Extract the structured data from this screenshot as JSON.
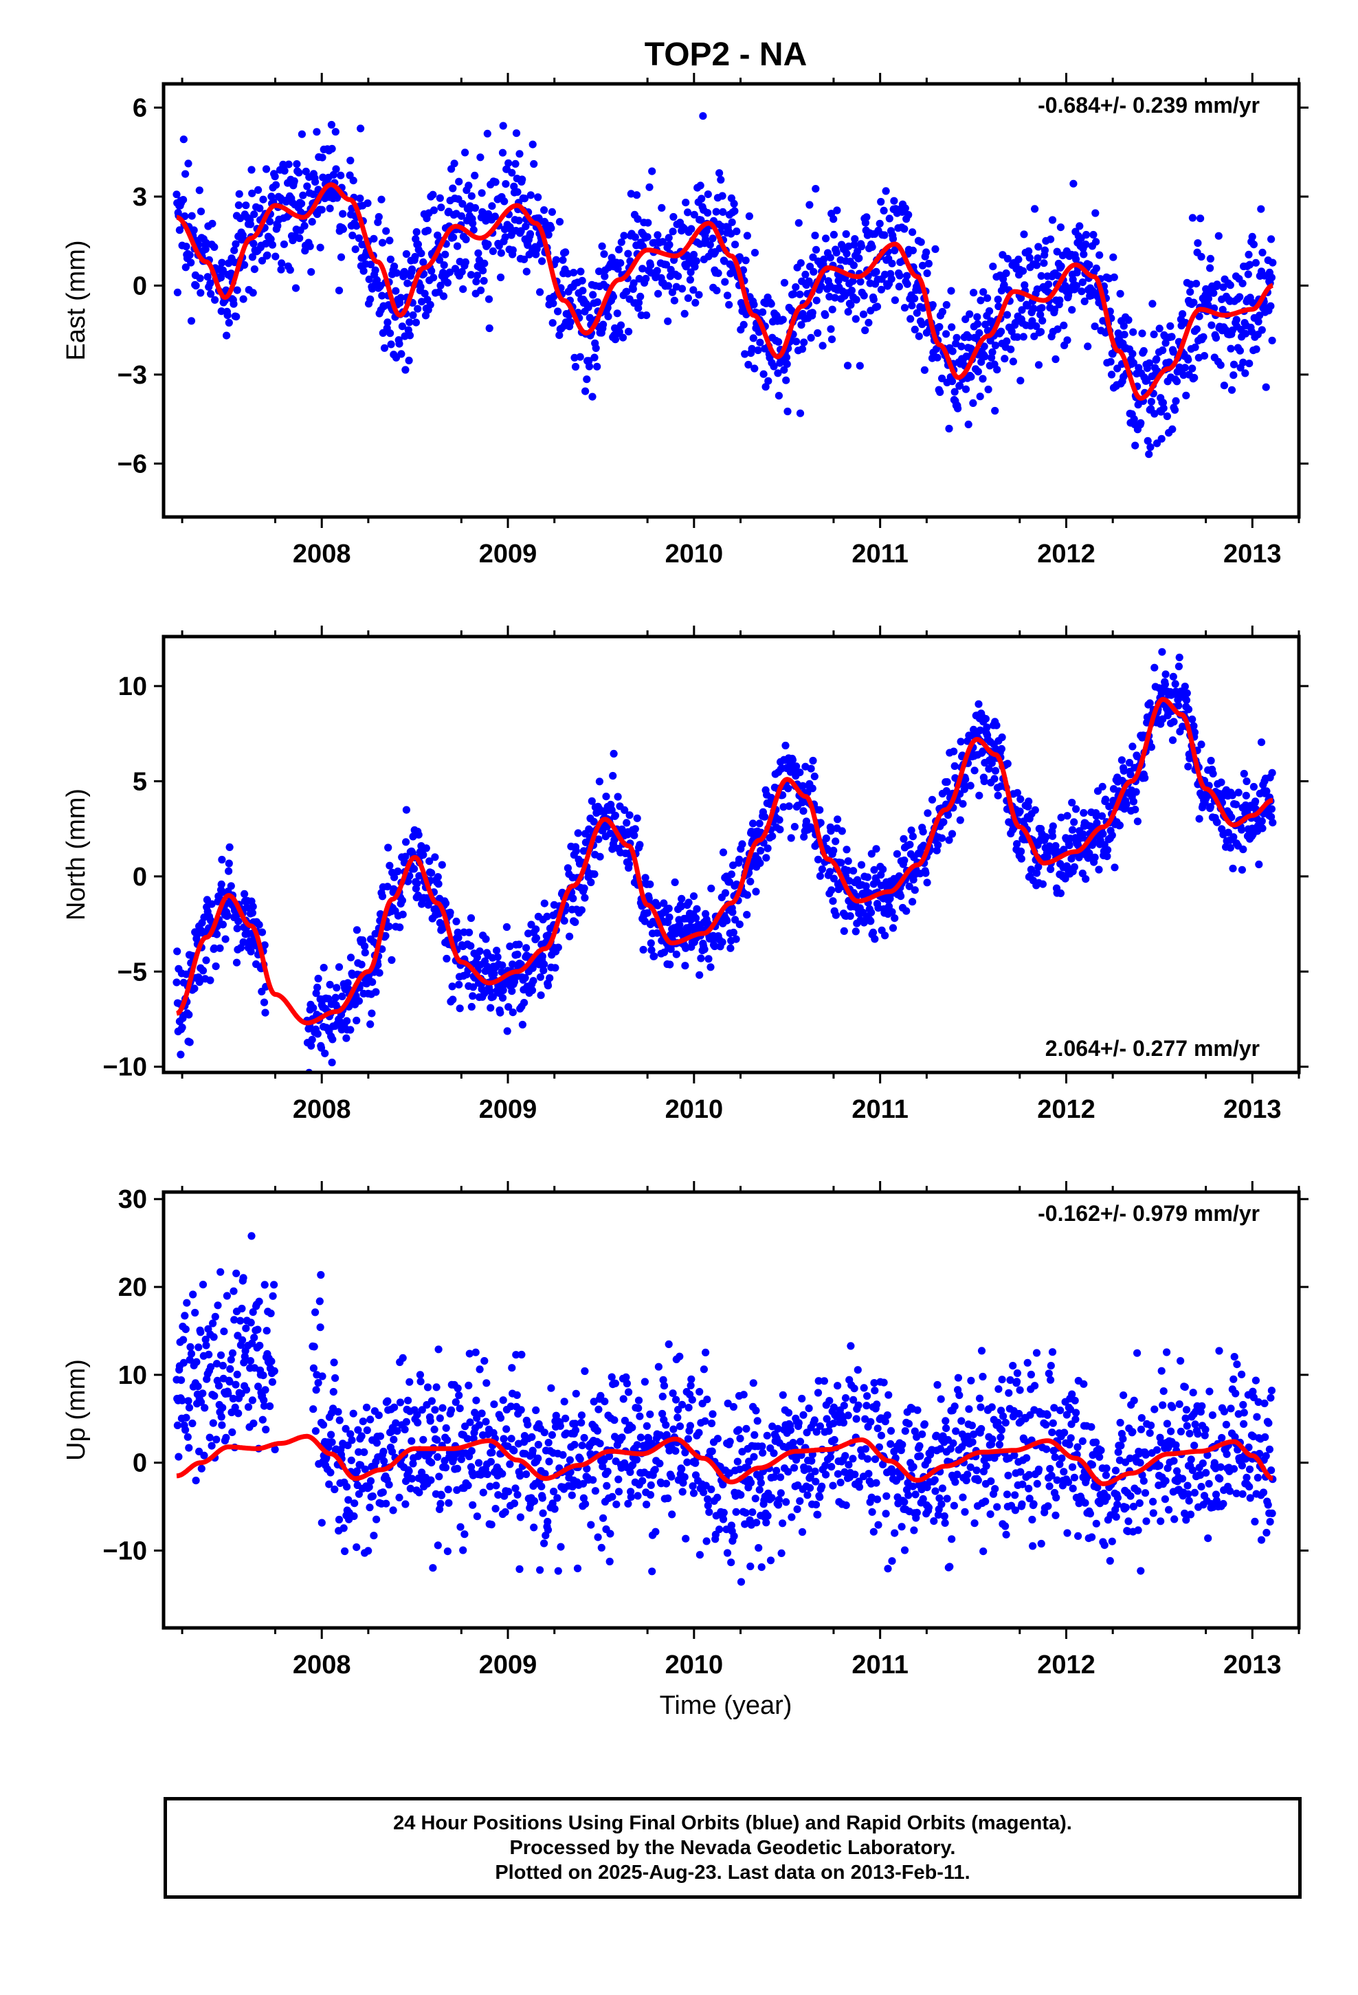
{
  "title": "TOP2 - NA",
  "colors": {
    "daily_points": "#0000ff",
    "trend_curve": "#ff0000",
    "frame": "#000000"
  },
  "xlabel": "Time (year)",
  "footer": {
    "line1": "24 Hour Positions Using Final Orbits (blue) and Rapid Orbits (magenta).",
    "line2": "Processed by the Nevada Geodetic Laboratory.",
    "line3": "Plotted on 2025-Aug-23. Last data on 2013-Feb-11."
  },
  "chart_data": [
    {
      "type": "scatter",
      "component": "east",
      "ylabel": "East (mm)",
      "rate_label": "-0.684+/- 0.239 mm/yr",
      "rate_position": "top-right",
      "xlim": [
        2007.15,
        2013.25
      ],
      "ylim": [
        -7.8,
        6.8
      ],
      "yticks": [
        -6,
        -3,
        0,
        3,
        6
      ],
      "ytick_labels": [
        "−6",
        "−3",
        "0",
        "3",
        "6"
      ],
      "xticks": [
        2008,
        2009,
        2010,
        2011,
        2012,
        2013
      ],
      "xtick_labels": [
        "2008",
        "2009",
        "2010",
        "2011",
        "2012",
        "2013"
      ],
      "data_range_x": [
        2007.22,
        2013.11
      ],
      "data_gap_x": [
        2008.12,
        2008.15
      ],
      "scatter_spread_mm": 1.1,
      "fitted_curve": {
        "x": [
          2007.22,
          2007.38,
          2007.48,
          2007.62,
          2007.75,
          2007.9,
          2008.05,
          2008.15,
          2008.3,
          2008.42,
          2008.55,
          2008.72,
          2008.85,
          2009.05,
          2009.15,
          2009.3,
          2009.42,
          2009.6,
          2009.75,
          2009.9,
          2010.08,
          2010.2,
          2010.32,
          2010.45,
          2010.58,
          2010.72,
          2010.88,
          2011.08,
          2011.2,
          2011.32,
          2011.42,
          2011.58,
          2011.72,
          2011.88,
          2012.05,
          2012.15,
          2012.28,
          2012.4,
          2012.55,
          2012.72,
          2012.85,
          2013.0,
          2013.11
        ],
        "y": [
          2.3,
          0.8,
          -0.4,
          1.6,
          2.7,
          2.3,
          3.4,
          2.9,
          0.8,
          -1.0,
          0.6,
          2.0,
          1.6,
          2.7,
          2.1,
          -0.5,
          -1.6,
          0.2,
          1.2,
          1.0,
          2.1,
          1.0,
          -1.0,
          -2.4,
          -0.7,
          0.6,
          0.3,
          1.4,
          0.3,
          -2.0,
          -3.1,
          -1.7,
          -0.2,
          -0.5,
          0.7,
          0.3,
          -2.2,
          -3.8,
          -2.8,
          -0.8,
          -1.0,
          -0.8,
          0.0
        ]
      }
    },
    {
      "type": "scatter",
      "component": "north",
      "ylabel": "North (mm)",
      "rate_label": "2.064+/- 0.277 mm/yr",
      "rate_position": "bottom-right",
      "xlim": [
        2007.15,
        2013.25
      ],
      "ylim": [
        -10.3,
        12.6
      ],
      "yticks": [
        -10,
        -5,
        0,
        5,
        10
      ],
      "ytick_labels": [
        "−10",
        "−5",
        "0",
        "5",
        "10"
      ],
      "xticks": [
        2008,
        2009,
        2010,
        2011,
        2012,
        2013
      ],
      "xtick_labels": [
        "2008",
        "2009",
        "2010",
        "2011",
        "2012",
        "2013"
      ],
      "data_range_x": [
        2007.22,
        2013.11
      ],
      "data_gap_x": [
        2007.7,
        2007.92
      ],
      "scatter_spread_mm": 1.1,
      "fitted_curve": {
        "x": [
          2007.22,
          2007.38,
          2007.5,
          2007.62,
          2007.75,
          2007.92,
          2008.08,
          2008.25,
          2008.38,
          2008.5,
          2008.62,
          2008.75,
          2008.9,
          2009.05,
          2009.2,
          2009.35,
          2009.52,
          2009.65,
          2009.75,
          2009.88,
          2010.05,
          2010.2,
          2010.35,
          2010.5,
          2010.6,
          2010.72,
          2010.88,
          2011.05,
          2011.2,
          2011.35,
          2011.52,
          2011.62,
          2011.75,
          2011.88,
          2012.05,
          2012.2,
          2012.35,
          2012.52,
          2012.62,
          2012.75,
          2012.9,
          2013.0,
          2013.11
        ],
        "y": [
          -7.2,
          -3.2,
          -1.0,
          -2.6,
          -6.2,
          -7.7,
          -7.1,
          -5.0,
          -1.2,
          1.0,
          -1.4,
          -4.5,
          -5.6,
          -5.0,
          -3.8,
          -0.5,
          3.0,
          1.6,
          -1.5,
          -3.5,
          -3.0,
          -1.4,
          1.9,
          5.1,
          4.2,
          0.9,
          -1.3,
          -0.8,
          0.6,
          3.5,
          7.2,
          6.4,
          2.6,
          0.7,
          1.3,
          2.6,
          5.0,
          9.3,
          8.5,
          4.6,
          2.7,
          3.2,
          4.0
        ]
      }
    },
    {
      "type": "scatter",
      "component": "up",
      "ylabel": "Up (mm)",
      "rate_label": "-0.162+/- 0.979 mm/yr",
      "rate_position": "top-right",
      "xlim": [
        2007.15,
        2013.25
      ],
      "ylim": [
        -18.8,
        30.8
      ],
      "yticks": [
        -10,
        0,
        10,
        20,
        30
      ],
      "ytick_labels": [
        "−10",
        "0",
        "10",
        "20",
        "30"
      ],
      "xticks": [
        2008,
        2009,
        2010,
        2011,
        2012,
        2013
      ],
      "xtick_labels": [
        "2008",
        "2009",
        "2010",
        "2011",
        "2012",
        "2013"
      ],
      "data_range_x": [
        2007.22,
        2013.11
      ],
      "data_gap_x": [
        2007.75,
        2007.95
      ],
      "scatter_spread_mm": 4.5,
      "fitted_curve": {
        "x": [
          2007.22,
          2007.35,
          2007.5,
          2007.65,
          2007.78,
          2007.92,
          2008.05,
          2008.18,
          2008.32,
          2008.5,
          2008.7,
          2008.9,
          2009.05,
          2009.2,
          2009.38,
          2009.55,
          2009.72,
          2009.9,
          2010.05,
          2010.2,
          2010.35,
          2010.55,
          2010.72,
          2010.9,
          2011.05,
          2011.2,
          2011.35,
          2011.55,
          2011.72,
          2011.9,
          2012.05,
          2012.2,
          2012.35,
          2012.55,
          2012.72,
          2012.9,
          2013.0,
          2013.11
        ],
        "y": [
          -1.5,
          0.0,
          1.8,
          1.6,
          2.2,
          3.0,
          1.0,
          -1.8,
          -0.8,
          1.6,
          1.6,
          2.5,
          0.3,
          -1.8,
          -0.3,
          1.3,
          1.0,
          2.7,
          0.5,
          -2.2,
          -0.6,
          1.3,
          1.5,
          2.6,
          0.2,
          -2.0,
          -0.4,
          1.2,
          1.4,
          2.5,
          0.5,
          -2.4,
          -1.2,
          1.0,
          1.3,
          2.4,
          0.8,
          -1.8
        ]
      }
    }
  ]
}
